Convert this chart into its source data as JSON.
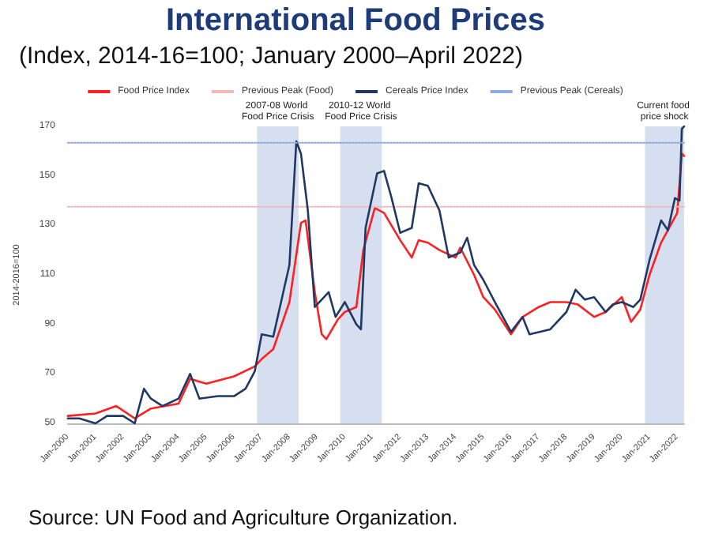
{
  "chart_data": {
    "type": "line",
    "title": "International Food Prices",
    "subtitle": "(Index, 2014-16=100; January 2000–April 2022)",
    "ylabel": "2014-2016=100",
    "annotations": [
      "Source: UN Food and Agriculture Organization."
    ],
    "xlim": [
      "2000-01",
      "2022-04"
    ],
    "xticks": [
      {
        "value": "2000-01",
        "label": "Jan-2000"
      },
      {
        "value": "2001-01",
        "label": "Jan-2001"
      },
      {
        "value": "2002-01",
        "label": "Jan-2002"
      },
      {
        "value": "2003-01",
        "label": "Jan-2003"
      },
      {
        "value": "2004-01",
        "label": "Jan-2004"
      },
      {
        "value": "2005-01",
        "label": "Jan-2005"
      },
      {
        "value": "2006-01",
        "label": "Jan-2006"
      },
      {
        "value": "2007-01",
        "label": "Jan-2007"
      },
      {
        "value": "2008-01",
        "label": "Jan-2008"
      },
      {
        "value": "2009-01",
        "label": "Jan-2009"
      },
      {
        "value": "2010-01",
        "label": "Jan-2010"
      },
      {
        "value": "2011-01",
        "label": "Jan-2011"
      },
      {
        "value": "2012-01",
        "label": "Jan-2012"
      },
      {
        "value": "2013-01",
        "label": "Jan-2013"
      },
      {
        "value": "2014-01",
        "label": "Jan-2014"
      },
      {
        "value": "2015-01",
        "label": "Jan-2015"
      },
      {
        "value": "2016-01",
        "label": "Jan-2016"
      },
      {
        "value": "2017-01",
        "label": "Jan-2017"
      },
      {
        "value": "2018-01",
        "label": "Jan-2018"
      },
      {
        "value": "2019-01",
        "label": "Jan-2019"
      },
      {
        "value": "2020-01",
        "label": "Jan-2020"
      },
      {
        "value": "2021-01",
        "label": "Jan-2021"
      },
      {
        "value": "2022-01",
        "label": "Jan-2022"
      }
    ],
    "ylim": [
      50,
      170
    ],
    "yticks": [
      50,
      70,
      90,
      110,
      130,
      150,
      170
    ],
    "grid": false,
    "legend": "top",
    "marker": "none",
    "line_style": "solid",
    "bands": [
      {
        "axis": "x",
        "from": "2006-11",
        "to": "2008-05",
        "label": "2007-08 World Food Price Crisis",
        "color": "#d6dff0"
      },
      {
        "axis": "x",
        "from": "2009-11",
        "to": "2011-05",
        "label": "2010-12 World Food Price Crisis",
        "color": "#d6dff0"
      },
      {
        "axis": "x",
        "from": "2020-11",
        "to": "2022-04",
        "label": "Current food price shock",
        "color": "#d6dff0"
      }
    ],
    "series": [
      {
        "name": "Food Price Index",
        "color": "#ff2020",
        "x": [
          "2000-01",
          "2001-01",
          "2001-10",
          "2002-06",
          "2003-01",
          "2004-01",
          "2004-04",
          "2004-06",
          "2005-01",
          "2006-01",
          "2006-10",
          "2007-01",
          "2007-06",
          "2008-01",
          "2008-06",
          "2008-08",
          "2008-12",
          "2009-03",
          "2009-05",
          "2009-10",
          "2010-01",
          "2010-06",
          "2010-09",
          "2011-02",
          "2011-06",
          "2012-01",
          "2012-06",
          "2012-09",
          "2013-01",
          "2013-06",
          "2014-01",
          "2014-03",
          "2014-09",
          "2015-01",
          "2015-06",
          "2016-01",
          "2016-06",
          "2017-01",
          "2017-06",
          "2018-01",
          "2018-06",
          "2019-01",
          "2019-06",
          "2020-01",
          "2020-05",
          "2020-09",
          "2021-01",
          "2021-06",
          "2022-01",
          "2022-03",
          "2022-04"
        ],
        "values": [
          53,
          54,
          57,
          52,
          56,
          58,
          64,
          68,
          66,
          69,
          73,
          76,
          80,
          99,
          131,
          132,
          103,
          86,
          84,
          92,
          95,
          97,
          120,
          137,
          135,
          124,
          117,
          124,
          123,
          120,
          117,
          121,
          110,
          101,
          96,
          86,
          93,
          97,
          99,
          99,
          98,
          93,
          95,
          101,
          91,
          96,
          110,
          123,
          135,
          159,
          158
        ]
      },
      {
        "name": "Previous Peak (Food)",
        "color": "#f2b8b8",
        "line_style": "dotted",
        "x": [
          "2000-01",
          "2022-04"
        ],
        "values": [
          137.5,
          137.5
        ]
      },
      {
        "name": "Cereals Price Index",
        "color": "#1f3864",
        "x": [
          "2000-01",
          "2000-06",
          "2001-01",
          "2001-06",
          "2002-01",
          "2002-06",
          "2002-10",
          "2003-01",
          "2003-06",
          "2004-01",
          "2004-06",
          "2004-10",
          "2005-06",
          "2006-01",
          "2006-06",
          "2006-10",
          "2007-01",
          "2007-06",
          "2008-01",
          "2008-04",
          "2008-06",
          "2008-09",
          "2008-12",
          "2009-03",
          "2009-06",
          "2009-09",
          "2010-01",
          "2010-06",
          "2010-08",
          "2010-10",
          "2011-03",
          "2011-06",
          "2011-09",
          "2012-01",
          "2012-06",
          "2012-09",
          "2013-01",
          "2013-06",
          "2013-10",
          "2014-03",
          "2014-06",
          "2014-09",
          "2015-01",
          "2015-06",
          "2016-01",
          "2016-06",
          "2016-09",
          "2017-06",
          "2018-01",
          "2018-05",
          "2018-09",
          "2019-01",
          "2019-06",
          "2019-09",
          "2020-01",
          "2020-06",
          "2020-09",
          "2021-01",
          "2021-06",
          "2021-09",
          "2021-12",
          "2022-02",
          "2022-03",
          "2022-04"
        ],
        "values": [
          52,
          52,
          50,
          53,
          53,
          50,
          64,
          60,
          57,
          60,
          70,
          60,
          61,
          61,
          64,
          71,
          86,
          85,
          114,
          164,
          159,
          136,
          97,
          100,
          103,
          93,
          99,
          90,
          88,
          129,
          151,
          152,
          142,
          127,
          129,
          147,
          146,
          136,
          117,
          119,
          125,
          114,
          108,
          99,
          87,
          93,
          86,
          88,
          95,
          104,
          100,
          101,
          95,
          98,
          99,
          97,
          100,
          116,
          132,
          128,
          141,
          140,
          169,
          170
        ]
      },
      {
        "name": "Previous Peak (Cereals)",
        "color": "#8ea9e0",
        "line_style": "dotted",
        "x": [
          "2000-01",
          "2022-04"
        ],
        "values": [
          163.4,
          163.4
        ]
      }
    ]
  }
}
